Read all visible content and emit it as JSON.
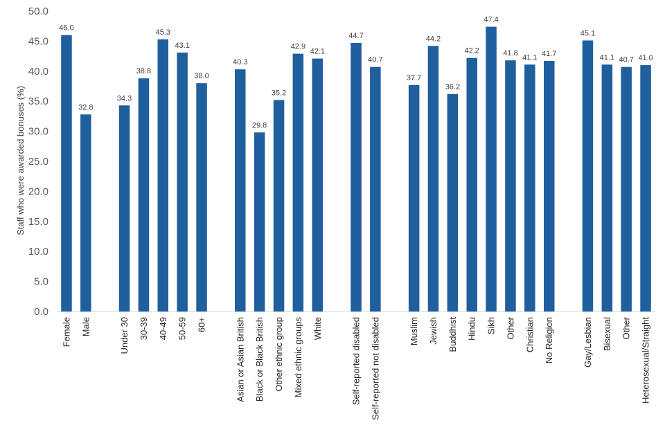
{
  "chart_data": {
    "type": "bar",
    "title": "",
    "xlabel": "",
    "ylabel": "Staff who were awarded bonuses (%)",
    "ylim": [
      0,
      50
    ],
    "ytick_step": 5,
    "ytick_labels": [
      "0.0",
      "5.0",
      "10.0",
      "15.0",
      "20.0",
      "25.0",
      "30.0",
      "35.0",
      "40.0",
      "45.0",
      "50.0"
    ],
    "grid": false,
    "bar_color": "#1F5F9E",
    "categories": [
      "Female",
      "Male",
      "",
      "Under 30",
      "30-39",
      "40-49",
      "50-59",
      "60+",
      "",
      "Asian or Asian British",
      "Black or Black British",
      "Other ethnic group",
      "Mixed ethnic groups",
      "White",
      "",
      "Self-reported disabled",
      "Self-reported not disabled",
      "",
      "Muslim",
      "Jewish",
      "Buddhist",
      "Hindu",
      "Sikh",
      "Other",
      "Christian",
      "No Religion",
      "",
      "Gay/Lesbian",
      "Bisexual",
      "Other",
      "Heterosexual/Straight"
    ],
    "values": [
      46.0,
      32.8,
      null,
      34.3,
      38.8,
      45.3,
      43.1,
      38.0,
      null,
      40.3,
      29.8,
      35.2,
      42.9,
      42.1,
      null,
      44.7,
      40.7,
      null,
      37.7,
      44.2,
      36.2,
      42.2,
      47.4,
      41.8,
      41.1,
      41.7,
      null,
      45.1,
      41.1,
      40.7,
      41.0
    ],
    "data_labels": [
      "46.0",
      "32.8",
      "",
      "34.3",
      "38.8",
      "45.3",
      "43.1",
      "38.0",
      "",
      "40.3",
      "29.8",
      "35.2",
      "42.9",
      "42.1",
      "",
      "44.7",
      "40.7",
      "",
      "37.7",
      "44.2",
      "36.2",
      "42.2",
      "47.4",
      "41.8",
      "41.1",
      "41.7",
      "",
      "45.1",
      "41.1",
      "40.7",
      "41.0"
    ]
  }
}
